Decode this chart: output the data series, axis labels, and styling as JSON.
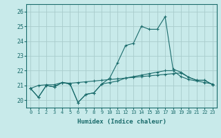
{
  "xlabel": "Humidex (Indice chaleur)",
  "background_color": "#c8eaea",
  "grid_color": "#a8cccc",
  "line_color": "#1a6b6b",
  "ylim": [
    19.5,
    26.5
  ],
  "xlim": [
    -0.5,
    23.5
  ],
  "yticks": [
    20,
    21,
    22,
    23,
    24,
    25,
    26
  ],
  "xticks": [
    0,
    1,
    2,
    3,
    4,
    5,
    6,
    7,
    8,
    9,
    10,
    11,
    12,
    13,
    14,
    15,
    16,
    17,
    18,
    19,
    20,
    21,
    22,
    23
  ],
  "series": [
    [
      20.8,
      20.2,
      21.0,
      20.9,
      21.2,
      21.1,
      19.85,
      20.4,
      20.5,
      21.1,
      21.2,
      21.3,
      21.5,
      21.6,
      21.7,
      21.8,
      21.9,
      22.0,
      22.0,
      21.6,
      21.4,
      21.3,
      21.2,
      21.1
    ],
    [
      20.8,
      20.2,
      21.0,
      20.9,
      21.2,
      21.1,
      19.85,
      20.4,
      20.5,
      21.1,
      21.5,
      22.55,
      23.7,
      23.85,
      25.0,
      24.8,
      24.8,
      25.65,
      22.1,
      21.9,
      21.55,
      21.35,
      21.35,
      21.05
    ],
    [
      20.8,
      21.0,
      21.05,
      21.05,
      21.2,
      21.15,
      21.2,
      21.25,
      21.3,
      21.35,
      21.4,
      21.45,
      21.5,
      21.55,
      21.6,
      21.65,
      21.7,
      21.75,
      21.8,
      21.85,
      21.55,
      21.35,
      21.35,
      21.05
    ]
  ]
}
